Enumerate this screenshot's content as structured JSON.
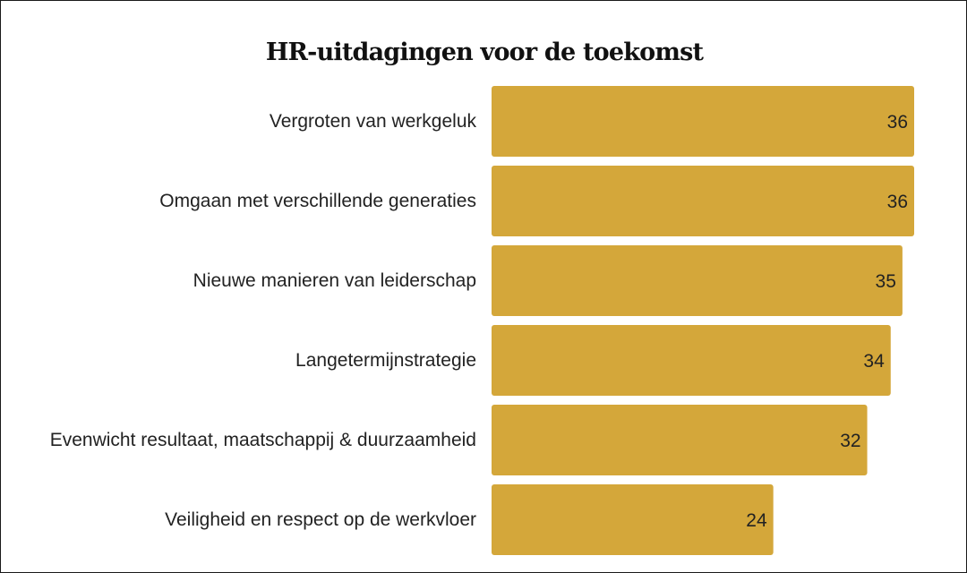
{
  "chart_data": {
    "type": "bar",
    "orientation": "horizontal",
    "title": "HR-uitdagingen voor de toekomst",
    "xlabel": "",
    "ylabel": "",
    "categories": [
      "Vergroten van werkgeluk",
      "Omgaan met verschillende generaties",
      "Nieuwe manieren van leiderschap",
      "Langetermijnstrategie",
      "Evenwicht resultaat, maatschappij & duurzaamheid",
      "Veiligheid en respect op de werkvloer"
    ],
    "values": [
      36,
      36,
      35,
      34,
      32,
      24
    ],
    "xlim": [
      0,
      36
    ],
    "grid": false,
    "legend": "none",
    "bar_color": "#d4a73a",
    "text_color": "#222222"
  }
}
